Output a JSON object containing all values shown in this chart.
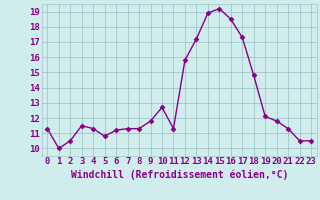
{
  "x": [
    0,
    1,
    2,
    3,
    4,
    5,
    6,
    7,
    8,
    9,
    10,
    11,
    12,
    13,
    14,
    15,
    16,
    17,
    18,
    19,
    20,
    21,
    22,
    23
  ],
  "y": [
    11.3,
    10.0,
    10.5,
    11.5,
    11.3,
    10.8,
    11.2,
    11.3,
    11.3,
    11.8,
    12.7,
    11.3,
    15.8,
    17.2,
    18.9,
    19.2,
    18.5,
    17.3,
    14.8,
    12.1,
    11.8,
    11.3,
    10.5,
    10.5
  ],
  "line_color": "#880088",
  "marker": "D",
  "markersize": 2.5,
  "linewidth": 1.0,
  "xlabel": "Windchill (Refroidissement éolien,°C)",
  "xlabel_fontsize": 7,
  "xlim": [
    -0.5,
    23.5
  ],
  "ylim": [
    9.5,
    19.5
  ],
  "yticks": [
    10,
    11,
    12,
    13,
    14,
    15,
    16,
    17,
    18,
    19
  ],
  "xticks": [
    0,
    1,
    2,
    3,
    4,
    5,
    6,
    7,
    8,
    9,
    10,
    11,
    12,
    13,
    14,
    15,
    16,
    17,
    18,
    19,
    20,
    21,
    22,
    23
  ],
  "background_color": "#d0ecec",
  "grid_color": "#a0c8c8",
  "tick_fontsize": 6.5,
  "label_color": "#880088"
}
